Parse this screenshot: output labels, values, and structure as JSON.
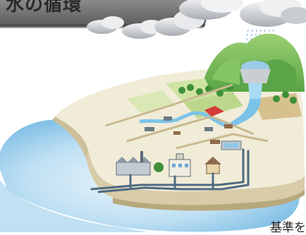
{
  "banner": {
    "title_fragment": "水の循環"
  },
  "caption": {
    "text_fragment": "基準を"
  },
  "colors": {
    "sea_light": "#b9dcf1",
    "sea_mid": "#8ec6e8",
    "land": "#f1ecd8",
    "cliff": "#d8cba8",
    "grass": "#cfe3a2",
    "mountain": "#7bbf5a",
    "mountain_dark": "#4e9a3c",
    "pipe": "#4d6a82",
    "banner": "#6d6d6d",
    "cloud": "#cfd2d6"
  },
  "icons": [
    "cloud-icon",
    "rain-icon",
    "dam-icon",
    "factory-icon",
    "school-icon",
    "house-icon",
    "pipe-network-icon"
  ]
}
